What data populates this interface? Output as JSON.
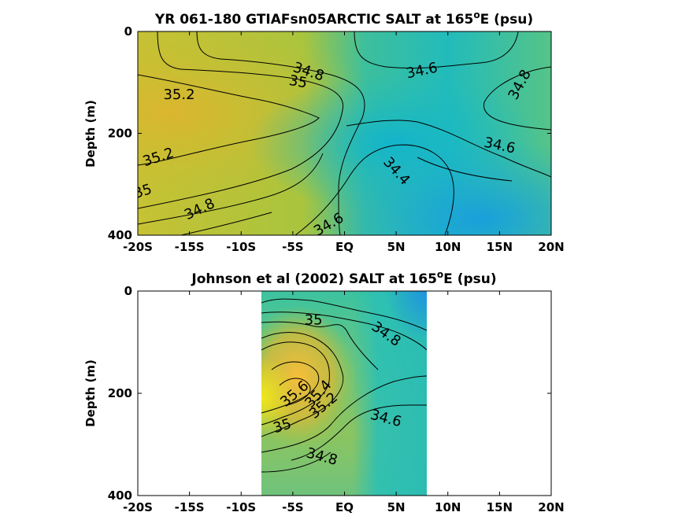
{
  "chart_data": [
    {
      "type": "heatmap",
      "title_main": "YR 061-180 GTIAFsn05ARCTIC SALT at 165",
      "title_sup": "o",
      "title_tail": "E (psu)",
      "ylabel": "Depth (m)",
      "xlim": [
        -20,
        20
      ],
      "ylim": [
        400,
        0
      ],
      "x_ticks": [
        {
          "v": -20,
          "label": "-20S"
        },
        {
          "v": -15,
          "label": "-15S"
        },
        {
          "v": -10,
          "label": "-10S"
        },
        {
          "v": -5,
          "label": "-5S"
        },
        {
          "v": 0,
          "label": "EQ"
        },
        {
          "v": 5,
          "label": "5N"
        },
        {
          "v": 10,
          "label": "10N"
        },
        {
          "v": 15,
          "label": "15N"
        },
        {
          "v": 20,
          "label": "20N"
        }
      ],
      "y_ticks": [
        {
          "v": 0,
          "label": "0"
        },
        {
          "v": 200,
          "label": "200"
        },
        {
          "v": 400,
          "label": "400"
        }
      ],
      "data_extent": [
        -20,
        20
      ],
      "contour_labels": [
        {
          "text": "34.8",
          "x": -3.5,
          "y": 80,
          "rot": 18
        },
        {
          "text": "35",
          "x": -4.5,
          "y": 100,
          "rot": 10
        },
        {
          "text": "34.6",
          "x": 7.5,
          "y": 78,
          "rot": -12
        },
        {
          "text": "34.8",
          "x": 17,
          "y": 105,
          "rot": -62
        },
        {
          "text": "35.2",
          "x": -16,
          "y": 125,
          "rot": 0
        },
        {
          "text": "34.6",
          "x": 15,
          "y": 225,
          "rot": 12
        },
        {
          "text": "35.2",
          "x": -18,
          "y": 248,
          "rot": -18
        },
        {
          "text": "34.4",
          "x": 5,
          "y": 275,
          "rot": 48
        },
        {
          "text": "35",
          "x": -19.5,
          "y": 315,
          "rot": -18
        },
        {
          "text": "34.8",
          "x": -14,
          "y": 350,
          "rot": -25
        },
        {
          "text": "34.6",
          "x": -1.5,
          "y": 380,
          "rot": -30
        }
      ]
    },
    {
      "type": "heatmap",
      "title_main": "Johnson et al (2002) SALT at 165",
      "title_sup": "o",
      "title_tail": "E (psu)",
      "ylabel": "Depth (m)",
      "xlim": [
        -20,
        20
      ],
      "ylim": [
        400,
        0
      ],
      "x_ticks": [
        {
          "v": -20,
          "label": "-20S"
        },
        {
          "v": -15,
          "label": "-15S"
        },
        {
          "v": -10,
          "label": "-10S"
        },
        {
          "v": -5,
          "label": "-5S"
        },
        {
          "v": 0,
          "label": "EQ"
        },
        {
          "v": 5,
          "label": "5N"
        },
        {
          "v": 10,
          "label": "10N"
        },
        {
          "v": 15,
          "label": "15N"
        },
        {
          "v": 20,
          "label": "20N"
        }
      ],
      "y_ticks": [
        {
          "v": 0,
          "label": "0"
        },
        {
          "v": 200,
          "label": "200"
        },
        {
          "v": 400,
          "label": "400"
        }
      ],
      "data_extent": [
        -8,
        8
      ],
      "contour_labels": [
        {
          "text": "35",
          "x": -3,
          "y": 58,
          "rot": 0
        },
        {
          "text": "34.8",
          "x": 4,
          "y": 85,
          "rot": 35
        },
        {
          "text": "35.6",
          "x": -4.8,
          "y": 202,
          "rot": -40
        },
        {
          "text": "35.4",
          "x": -2.5,
          "y": 202,
          "rot": -48
        },
        {
          "text": "35.2",
          "x": -2,
          "y": 225,
          "rot": -40
        },
        {
          "text": "34.6",
          "x": 4,
          "y": 250,
          "rot": 15
        },
        {
          "text": "35",
          "x": -6,
          "y": 265,
          "rot": -18
        },
        {
          "text": "34.8",
          "x": -2.2,
          "y": 325,
          "rot": 15
        }
      ]
    }
  ]
}
